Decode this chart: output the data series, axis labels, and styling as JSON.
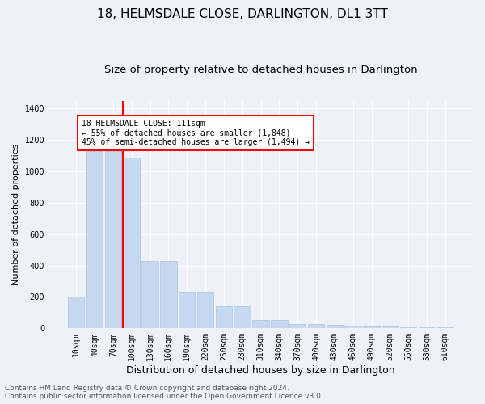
{
  "title": "18, HELMSDALE CLOSE, DARLINGTON, DL1 3TT",
  "subtitle": "Size of property relative to detached houses in Darlington",
  "xlabel": "Distribution of detached houses by size in Darlington",
  "ylabel": "Number of detached properties",
  "categories": [
    "10sqm",
    "40sqm",
    "70sqm",
    "100sqm",
    "130sqm",
    "160sqm",
    "190sqm",
    "220sqm",
    "250sqm",
    "280sqm",
    "310sqm",
    "340sqm",
    "370sqm",
    "400sqm",
    "430sqm",
    "460sqm",
    "490sqm",
    "520sqm",
    "550sqm",
    "580sqm",
    "610sqm"
  ],
  "values": [
    200,
    1130,
    1130,
    1090,
    430,
    430,
    230,
    230,
    140,
    140,
    55,
    55,
    30,
    25,
    20,
    18,
    12,
    10,
    8,
    5,
    8
  ],
  "bar_color": "#c5d8f0",
  "bar_edge_color": "#a8c4e0",
  "vline_index": 3,
  "vline_color": "red",
  "annotation_text": "18 HELMSDALE CLOSE: 111sqm\n← 55% of detached houses are smaller (1,848)\n45% of semi-detached houses are larger (1,494) →",
  "annotation_box_color": "white",
  "annotation_box_edge_color": "red",
  "ylim": [
    0,
    1450
  ],
  "yticks": [
    0,
    200,
    400,
    600,
    800,
    1000,
    1200,
    1400
  ],
  "footer_line1": "Contains HM Land Registry data © Crown copyright and database right 2024.",
  "footer_line2": "Contains public sector information licensed under the Open Government Licence v3.0.",
  "background_color": "#eef2f8",
  "plot_bg_color": "#eef2f8",
  "grid_color": "white",
  "title_fontsize": 11,
  "subtitle_fontsize": 9.5,
  "xlabel_fontsize": 9,
  "ylabel_fontsize": 8,
  "tick_fontsize": 7,
  "footer_fontsize": 6.5
}
